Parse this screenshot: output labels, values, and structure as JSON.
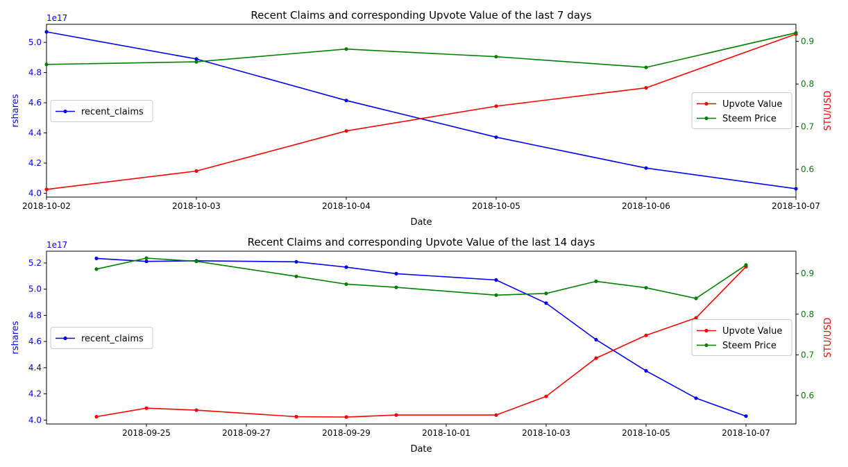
{
  "colors": {
    "recent_claims": "#0000ff",
    "upvote_value": "#ff0000",
    "steem_price": "#008000",
    "axis": "#000000"
  },
  "chart_data": [
    {
      "type": "line",
      "title": "Recent Claims and corresponding Upvote Value of the last 7 days",
      "xlabel": "Date",
      "ylabel_left": "rshares",
      "ylabel_right": "STU/USD",
      "y_left_multiplier": "1e17",
      "x": [
        "2018-10-02",
        "2018-10-03",
        "2018-10-04",
        "2018-10-05",
        "2018-10-06",
        "2018-10-07"
      ],
      "x_ticks": [
        "2018-10-02",
        "2018-10-03",
        "2018-10-04",
        "2018-10-05",
        "2018-10-06",
        "2018-10-07"
      ],
      "xlim": [
        "2018-10-02",
        "2018-10-07"
      ],
      "y_left_lim": [
        3.975,
        5.12
      ],
      "y_left_ticks": [
        "4.0",
        "4.2",
        "4.4",
        "4.6",
        "4.8",
        "5.0"
      ],
      "y_right_lim": [
        0.535,
        0.94
      ],
      "y_right_ticks": [
        "0.6",
        "0.7",
        "0.8",
        "0.9"
      ],
      "series_left": [
        {
          "name": "recent_claims",
          "color": "#0000ff",
          "values": [
            5.07,
            4.89,
            4.615,
            4.372,
            4.167,
            4.03
          ]
        }
      ],
      "series_right": [
        {
          "name": "Upvote Value",
          "color": "#ff0000",
          "values": [
            0.553,
            0.596,
            0.69,
            0.748,
            0.791,
            0.917
          ]
        },
        {
          "name": "Steem Price",
          "color": "#008000",
          "values": [
            0.846,
            0.852,
            0.882,
            0.864,
            0.839,
            0.92
          ]
        }
      ],
      "legend_left_position": "center-left",
      "legend_right_position": "center-right",
      "grid": false
    },
    {
      "type": "line",
      "title": "Recent Claims and corresponding Upvote Value of the last 14 days",
      "xlabel": "Date",
      "ylabel_left": "rshares",
      "ylabel_right": "STU/USD",
      "y_left_multiplier": "1e17",
      "x": [
        "2018-09-24",
        "2018-09-25",
        "2018-09-26",
        "2018-09-28",
        "2018-09-29",
        "2018-09-30",
        "2018-10-02",
        "2018-10-03",
        "2018-10-04",
        "2018-10-05",
        "2018-10-06",
        "2018-10-07"
      ],
      "x_ticks": [
        "2018-09-25",
        "2018-09-27",
        "2018-09-29",
        "2018-10-01",
        "2018-10-03",
        "2018-10-05",
        "2018-10-07"
      ],
      "xlim": [
        "2018-09-23",
        "2018-10-08"
      ],
      "y_left_lim": [
        3.97,
        5.29
      ],
      "y_left_ticks": [
        "4.0",
        "4.2",
        "4.4",
        "4.6",
        "4.8",
        "5.0",
        "5.2"
      ],
      "y_right_lim": [
        0.53,
        0.955
      ],
      "y_right_ticks": [
        "0.6",
        "0.7",
        "0.8",
        "0.9"
      ],
      "series_left": [
        {
          "name": "recent_claims",
          "color": "#0000ff",
          "values": [
            5.235,
            5.212,
            5.217,
            5.209,
            5.168,
            5.118,
            5.07,
            4.893,
            4.614,
            4.376,
            4.167,
            4.03
          ]
        }
      ],
      "series_right": [
        {
          "name": "Upvote Value",
          "color": "#ff0000",
          "values": [
            0.548,
            0.569,
            0.564,
            0.548,
            0.547,
            0.552,
            0.552,
            0.598,
            0.692,
            0.748,
            0.791,
            0.917
          ]
        },
        {
          "name": "Steem Price",
          "color": "#008000",
          "values": [
            0.911,
            0.938,
            0.93,
            0.893,
            0.874,
            0.866,
            0.847,
            0.851,
            0.881,
            0.865,
            0.839,
            0.921
          ]
        }
      ],
      "legend_left_position": "center-left",
      "legend_right_position": "center-right",
      "grid": false
    }
  ]
}
